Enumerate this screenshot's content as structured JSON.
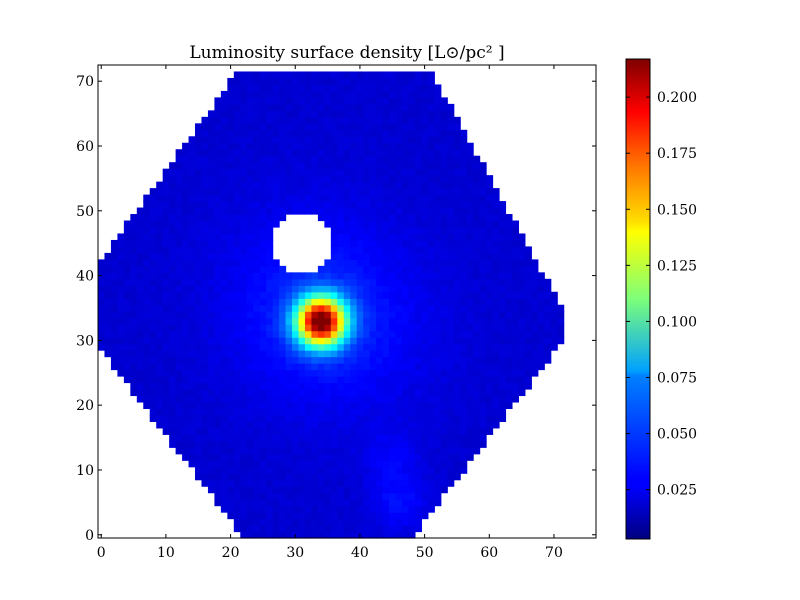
{
  "chart_data": {
    "type": "heatmap",
    "title": "Luminosity surface density [L⊙/pc² ]",
    "xlabel": "",
    "ylabel": "",
    "xlim": [
      -0.5,
      76.5
    ],
    "ylim": [
      -0.5,
      72.5
    ],
    "x_ticks": [
      "0",
      "10",
      "20",
      "30",
      "40",
      "50",
      "60",
      "70"
    ],
    "y_ticks": [
      "0",
      "10",
      "20",
      "30",
      "40",
      "50",
      "60",
      "70"
    ],
    "colormap": "jet",
    "colorbar": {
      "range": [
        0.003,
        0.217
      ],
      "ticks": [
        "0.025",
        "0.050",
        "0.075",
        "0.100",
        "0.125",
        "0.150",
        "0.175",
        "0.200"
      ],
      "placement": "right"
    },
    "field_footprint": "octagon",
    "field_edges": {
      "left_x": 0,
      "right_x": 71,
      "bottom_x_range": [
        22,
        48
      ],
      "top_x_range": [
        21,
        51
      ],
      "top_y": 71,
      "bottom_y": 0,
      "left_y_range": [
        29,
        42
      ],
      "right_y_range": [
        30,
        35
      ]
    },
    "background_level": 0.02,
    "peak": {
      "x": 34,
      "y": 33,
      "value": 0.213,
      "sigma": 2.6
    },
    "masked_region": {
      "x": 31,
      "y": 45,
      "radius": 4.6
    },
    "faint_features": [
      {
        "x": 46,
        "y": 5,
        "value": 0.012,
        "sigma": 3
      },
      {
        "x": 45,
        "y": 12,
        "value": 0.008,
        "sigma": 3
      },
      {
        "x": 42,
        "y": 30,
        "value": 0.004,
        "sigma": 10
      },
      {
        "x": 31,
        "y": 40,
        "value": 0.006,
        "sigma": 10
      }
    ],
    "grid": false,
    "legend": false
  }
}
